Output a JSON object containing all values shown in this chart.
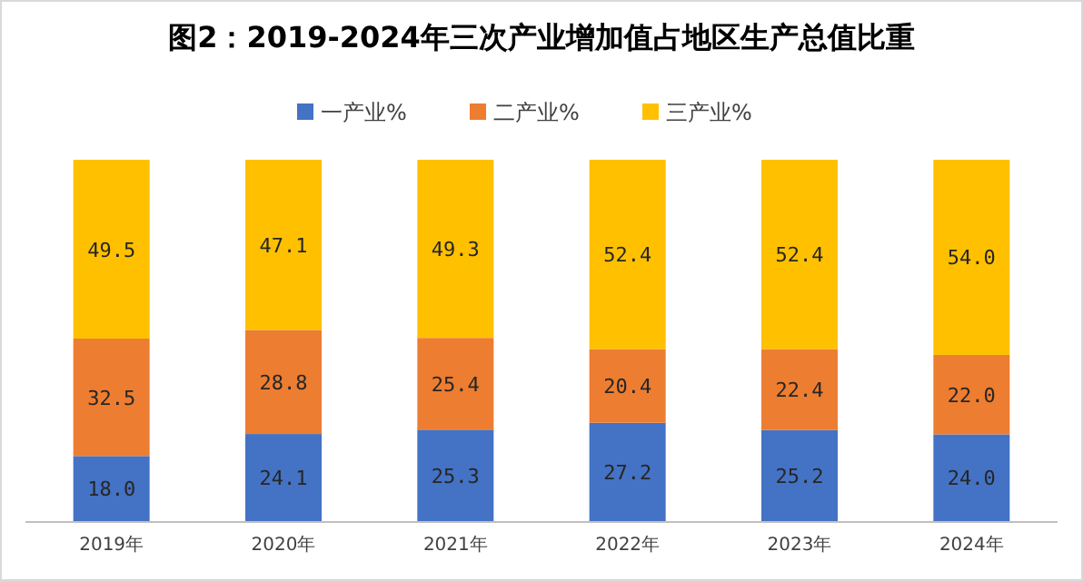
{
  "chart_data": {
    "type": "bar",
    "title": "图2：2019-2024年三次产业增加值占地区生产总值比重",
    "categories": [
      "2019年",
      "2020年",
      "2021年",
      "2022年",
      "2023年",
      "2024年"
    ],
    "stacked": true,
    "legend": "top",
    "series": [
      {
        "name": "一产业%",
        "color": "#4472c4",
        "values": [
          18.0,
          24.1,
          25.3,
          27.2,
          25.2,
          24.0
        ],
        "value_labels": [
          "18.0",
          "24.1",
          "25.3",
          "27.2",
          "25.2",
          "24.0"
        ]
      },
      {
        "name": "二产业%",
        "color": "#ed7d31",
        "values": [
          32.5,
          28.8,
          25.4,
          20.4,
          22.4,
          22.0
        ],
        "value_labels": [
          "32.5",
          "28.8",
          "25.4",
          "20.4",
          "22.4",
          "22.0"
        ]
      },
      {
        "name": "三产业%",
        "color": "#ffc000",
        "values": [
          49.5,
          47.1,
          49.3,
          52.4,
          52.4,
          54.0
        ],
        "value_labels": [
          "49.5",
          "47.1",
          "49.3",
          "52.4",
          "52.4",
          "54.0"
        ]
      }
    ]
  }
}
